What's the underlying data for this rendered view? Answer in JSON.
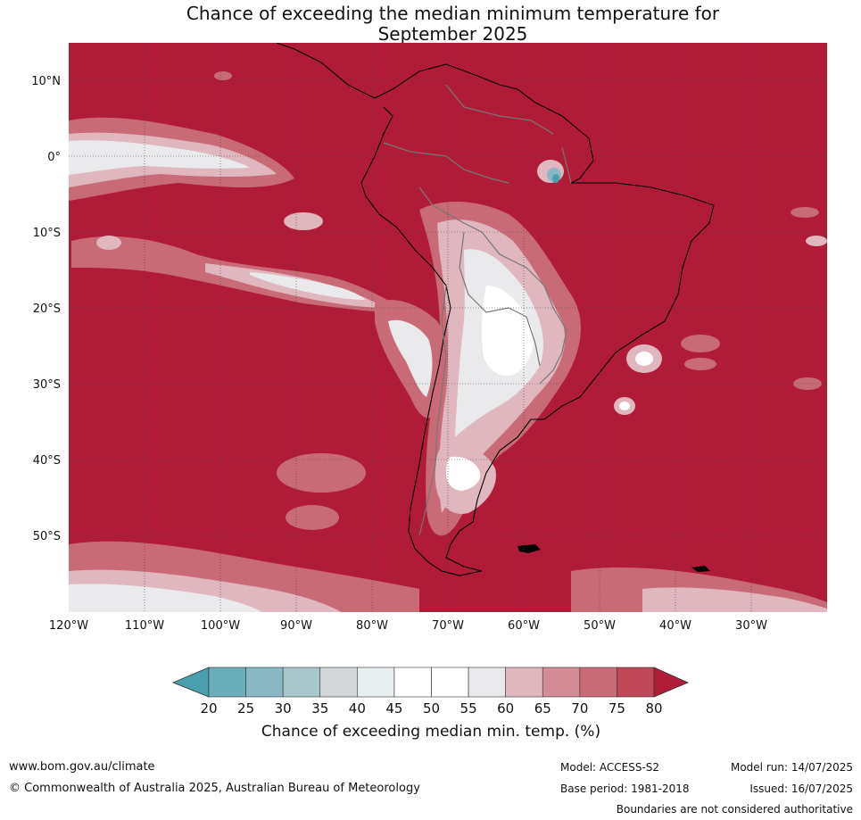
{
  "title_line1": "Chance of exceeding the median minimum temperature for",
  "title_line2": "September 2025",
  "lat_labels": [
    "10°N",
    "0°",
    "10°S",
    "20°S",
    "30°S",
    "40°S",
    "50°S"
  ],
  "lon_labels": [
    "120°W",
    "110°W",
    "100°W",
    "90°W",
    "80°W",
    "70°W",
    "60°W",
    "50°W",
    "40°W",
    "30°W"
  ],
  "colorbar": {
    "ticks": [
      "20",
      "25",
      "30",
      "35",
      "40",
      "45",
      "50",
      "55",
      "60",
      "65",
      "70",
      "75",
      "80"
    ],
    "colors": [
      "#4a9fae",
      "#6aadbb",
      "#89b8c4",
      "#a8c7cd",
      "#d3d7da",
      "#e9eff1",
      "#ffffff",
      "#ffffff",
      "#eaeaec",
      "#e0b7be",
      "#d48b95",
      "#c96b77",
      "#c04757",
      "#b01b38"
    ],
    "label": "Chance of exceeding median min. temp. (%)"
  },
  "colors": {
    "high": "#b01b38",
    "mid_high": "#c96b77",
    "mid": "#e0b7be",
    "neutral": "#eaeaec",
    "white": "#ffffff",
    "low": "#6aadbb"
  },
  "footer": {
    "website": "www.bom.gov.au/climate",
    "copyright": "© Commonwealth of Australia 2025, Australian Bureau of Meteorology",
    "model": "Model: ACCESS-S2",
    "model_run": "Model run: 14/07/2025",
    "base_period": "Base period: 1981-2018",
    "issued": "Issued: 16/07/2025",
    "disclaimer": "Boundaries are not considered authoritative"
  }
}
